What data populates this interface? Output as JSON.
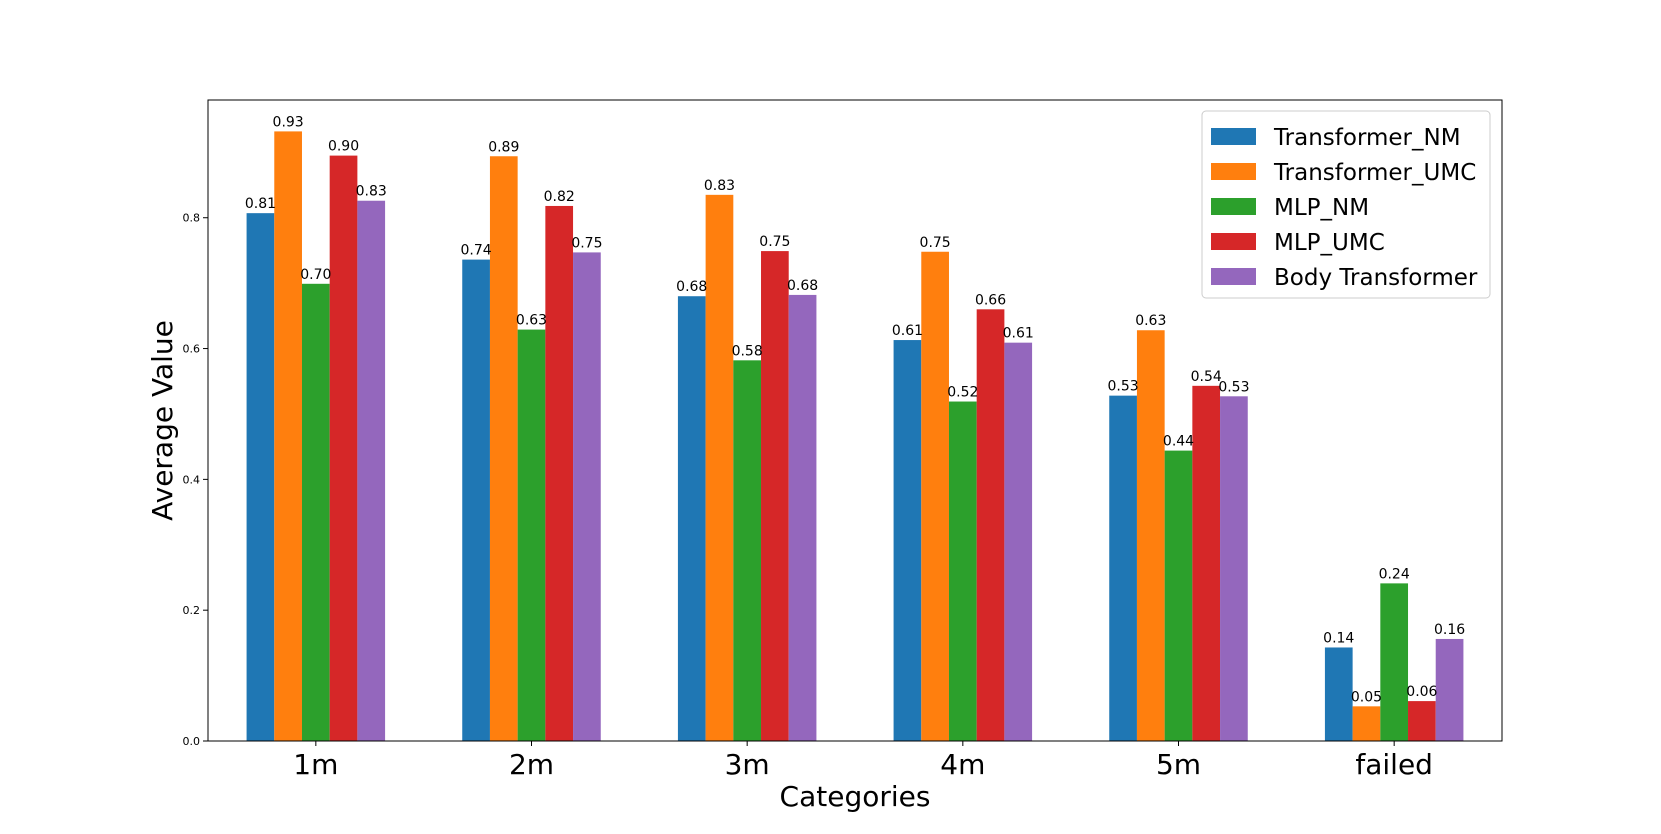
{
  "chart_data": {
    "type": "bar",
    "title": "",
    "xlabel": "Categories",
    "ylabel": "Average Value",
    "ylim": [
      0,
      0.98
    ],
    "yticks": [
      0.0,
      0.2,
      0.4,
      0.6,
      0.8
    ],
    "grid": false,
    "legend_position": "top-right",
    "categories": [
      "1m",
      "2m",
      "3m",
      "4m",
      "5m",
      "failed"
    ],
    "series": [
      {
        "name": "Transformer_NM",
        "color": "#1f77b4",
        "values": [
          0.807,
          0.736,
          0.68,
          0.613,
          0.528,
          0.143
        ],
        "labels": [
          "0.81",
          "0.74",
          "0.68",
          "0.61",
          "0.53",
          "0.14"
        ]
      },
      {
        "name": "Transformer_UMC",
        "color": "#ff7f0e",
        "values": [
          0.932,
          0.894,
          0.835,
          0.748,
          0.628,
          0.053
        ],
        "labels": [
          "0.93",
          "0.89",
          "0.83",
          "0.75",
          "0.63",
          "0.05"
        ]
      },
      {
        "name": "MLP_NM",
        "color": "#2ca02c",
        "values": [
          0.699,
          0.629,
          0.582,
          0.519,
          0.444,
          0.241
        ],
        "labels": [
          "0.70",
          "0.63",
          "0.58",
          "0.52",
          "0.44",
          "0.24"
        ]
      },
      {
        "name": "MLP_UMC",
        "color": "#d62728",
        "values": [
          0.895,
          0.818,
          0.749,
          0.66,
          0.543,
          0.061
        ],
        "labels": [
          "0.90",
          "0.82",
          "0.75",
          "0.66",
          "0.54",
          "0.06"
        ]
      },
      {
        "name": "Body Transformer",
        "color": "#9467bd",
        "values": [
          0.826,
          0.747,
          0.682,
          0.609,
          0.527,
          0.156
        ],
        "labels": [
          "0.83",
          "0.75",
          "0.68",
          "0.61",
          "0.53",
          "0.16"
        ]
      }
    ]
  }
}
